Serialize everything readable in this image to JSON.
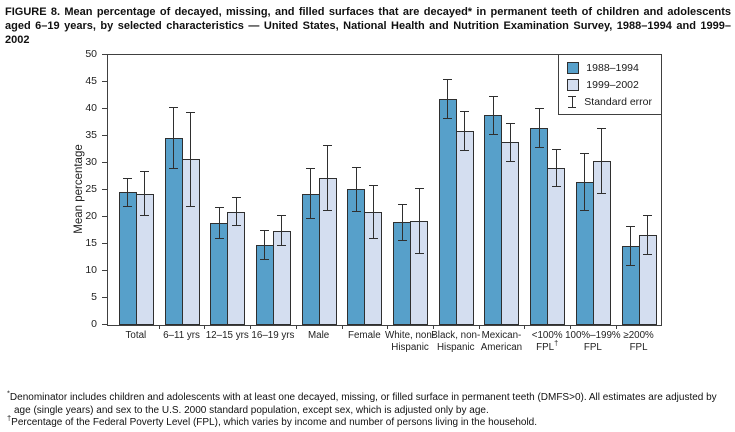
{
  "title": "FIGURE 8. Mean percentage of decayed, missing, and filled surfaces that are decayed* in permanent teeth of children and adolescents aged 6–19 years, by selected characteristics — United States, National Health and Nutrition Examination Survey, 1988–1994 and 1999–2002",
  "chart_data": {
    "type": "bar",
    "title": "",
    "xlabel": "",
    "ylabel": "Mean percentage",
    "ylim": [
      0,
      50
    ],
    "yticks": [
      0,
      5,
      10,
      15,
      20,
      25,
      30,
      35,
      40,
      45,
      50
    ],
    "grid": false,
    "legend_position": "top-right",
    "legend_error_label": "Standard error",
    "categories": [
      [
        "Total"
      ],
      [
        "6–11 yrs"
      ],
      [
        "12–15 yrs"
      ],
      [
        "16–19 yrs"
      ],
      [
        "Male"
      ],
      [
        "Female"
      ],
      [
        "White, non-",
        "Hispanic"
      ],
      [
        "Black, non-",
        "Hispanic"
      ],
      [
        "Mexican-",
        "American"
      ],
      [
        "<100%",
        "FPL†"
      ],
      [
        "100%–199%",
        "FPL"
      ],
      [
        "≥200%",
        "FPL"
      ]
    ],
    "series": [
      {
        "name": "1988–1994",
        "color": "#57a0ca",
        "values": [
          24.6,
          34.6,
          18.9,
          14.8,
          24.3,
          25.1,
          19.0,
          41.9,
          38.8,
          36.5,
          26.5,
          14.7
        ],
        "standard_error": [
          2.7,
          5.7,
          3.0,
          2.8,
          4.7,
          4.2,
          3.4,
          3.7,
          3.7,
          3.7,
          5.3,
          3.7
        ]
      },
      {
        "name": "1999–2002",
        "color": "#d4def0",
        "values": [
          24.3,
          30.7,
          21.0,
          17.5,
          27.2,
          20.9,
          19.2,
          36.0,
          33.8,
          29.1,
          30.3,
          16.7
        ],
        "standard_error": [
          4.2,
          8.8,
          2.7,
          2.9,
          6.1,
          5.0,
          6.1,
          3.7,
          3.7,
          3.5,
          6.1,
          3.7
        ]
      }
    ]
  },
  "footnotes": [
    {
      "marker": "*",
      "text": "Denominator includes children and adolescents with at least one decayed, missing, or filled surface in permanent teeth (DMFS>0). All estimates are adjusted by age (single years) and sex to the U.S. 2000 standard population, except sex, which is adjusted only by age."
    },
    {
      "marker": "†",
      "text": "Percentage of the Federal Poverty Level (FPL), which varies by income and number of persons living in the household."
    }
  ],
  "colors": {
    "series_1988_1994": "#57a0ca",
    "series_1999_2002": "#d4def0",
    "axis": "#404040",
    "bar_outline": "#2f2f2f",
    "background": "#ffffff"
  }
}
